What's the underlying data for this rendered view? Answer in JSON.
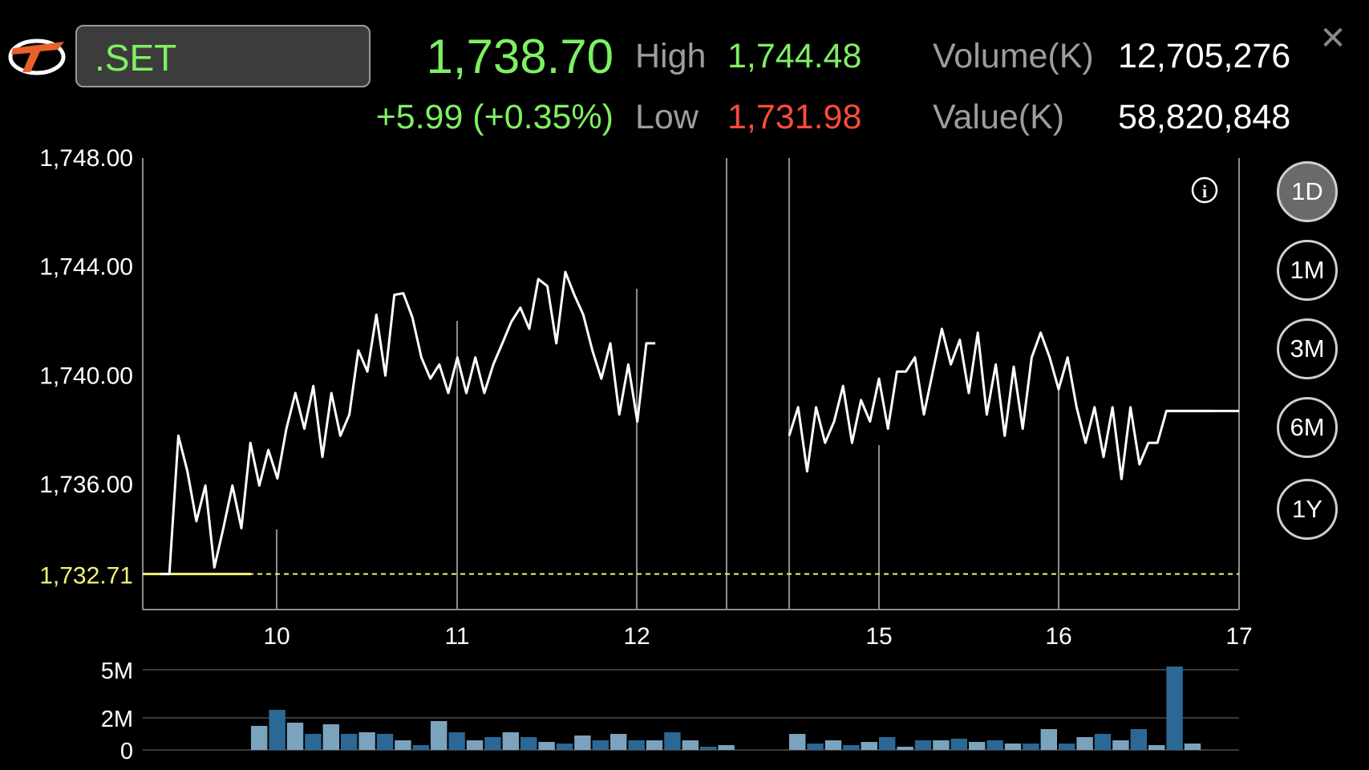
{
  "header": {
    "symbol": ".SET",
    "last": "1,738.70",
    "change": "+5.99 (+0.35%)",
    "high_label": "High",
    "high_value": "1,744.48",
    "low_label": "Low",
    "low_value": "1,731.98",
    "volume_label": "Volume(K)",
    "volume_value": "12,705,276",
    "value_label": "Value(K)",
    "value_value": "58,820,848",
    "close_icon": "close-icon"
  },
  "periods": {
    "selected": "1D",
    "items": [
      "1D",
      "1M",
      "3M",
      "6M",
      "1Y"
    ]
  },
  "colors": {
    "up": "#7ef063",
    "down": "#ff4a3c",
    "reference": "#f4f27a",
    "volume_dark": "#2b6895",
    "volume_light": "#7ca3bd"
  },
  "chart_data": {
    "type": "line",
    "yticks": [
      "1,748.00",
      "1,744.00",
      "1,740.00",
      "1,736.00"
    ],
    "ylim": [
      1731.4,
      1748.0
    ],
    "reference_label": "1,732.71",
    "reference_value": 1732.71,
    "xticks": [
      "10",
      "11",
      "12",
      "15",
      "16",
      "17"
    ],
    "info_icon": "info-icon",
    "session1_y": [
      1732.71,
      1732.71,
      1737.79,
      1736.48,
      1734.65,
      1735.96,
      1732.95,
      1734.39,
      1735.96,
      1734.39,
      1737.53,
      1735.96,
      1737.27,
      1736.22,
      1738.05,
      1739.36,
      1738.05,
      1739.62,
      1737.01,
      1739.36,
      1737.79,
      1738.57,
      1740.93,
      1740.15,
      1742.24,
      1740.0,
      1742.97,
      1743.03,
      1742.14,
      1740.67,
      1739.89,
      1740.41,
      1739.36,
      1740.67,
      1739.36,
      1740.67,
      1739.36,
      1740.41,
      1741.19,
      1741.98,
      1742.5,
      1741.72,
      1743.55,
      1743.29,
      1741.19,
      1743.81,
      1742.97,
      1742.24,
      1740.93,
      1739.89,
      1741.19,
      1738.57,
      1740.41,
      1738.31,
      1741.19,
      1741.19
    ],
    "session2_y": [
      1737.79,
      1738.84,
      1736.48,
      1738.84,
      1737.53,
      1738.31,
      1739.62,
      1737.53,
      1739.1,
      1738.31,
      1739.89,
      1738.05,
      1740.15,
      1740.15,
      1740.67,
      1738.57,
      1740.15,
      1741.72,
      1740.41,
      1741.32,
      1739.36,
      1741.58,
      1738.57,
      1740.41,
      1737.79,
      1740.33,
      1738.05,
      1740.67,
      1741.58,
      1740.67,
      1739.5,
      1740.67,
      1738.84,
      1737.53,
      1738.84,
      1737.01,
      1738.84,
      1736.2,
      1738.84,
      1736.74,
      1737.53,
      1737.53,
      1738.7,
      1738.7,
      1738.7,
      1738.7,
      1738.7,
      1738.7
    ],
    "volume_ticks": [
      "5M",
      "2M",
      "0"
    ],
    "volume_ylim": [
      0,
      5
    ],
    "volume_session1": [
      1.5,
      2.5,
      1.7,
      1.0,
      1.6,
      1.0,
      1.1,
      1.0,
      0.6,
      0.3,
      1.8,
      1.1,
      0.6,
      0.8,
      1.1,
      0.8,
      0.5,
      0.4,
      0.9,
      0.6,
      1.0,
      0.6,
      0.6,
      1.1,
      0.6,
      0.2,
      0.3
    ],
    "volume_session2": [
      1.0,
      0.4,
      0.6,
      0.3,
      0.5,
      0.8,
      0.2,
      0.6,
      0.6,
      0.7,
      0.5,
      0.6,
      0.4,
      0.4,
      1.3,
      0.4,
      0.8,
      1.0,
      0.6,
      1.3,
      0.3,
      5.2,
      0.4
    ]
  }
}
